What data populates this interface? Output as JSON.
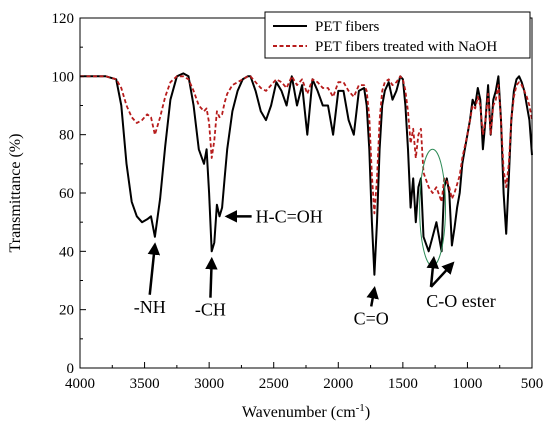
{
  "chart_data": {
    "type": "line",
    "xlabel": "Wavenumber (cm",
    "xlabel_sup": "-1",
    "xlabel_tail": ")",
    "ylabel": "Transmittance (%)",
    "xlim": [
      4000,
      500
    ],
    "ylim": [
      0,
      120
    ],
    "x_ticks": [
      4000,
      3500,
      3000,
      2500,
      2000,
      1500,
      1000,
      500
    ],
    "y_ticks": [
      0,
      20,
      40,
      60,
      80,
      100,
      120
    ],
    "grid": false,
    "legend_position": "top-right",
    "series": [
      {
        "name": "PET fibers",
        "color": "#000000",
        "style": "solid",
        "x": [
          4000,
          3800,
          3720,
          3680,
          3640,
          3600,
          3560,
          3520,
          3480,
          3450,
          3420,
          3380,
          3340,
          3300,
          3250,
          3200,
          3160,
          3120,
          3080,
          3040,
          3020,
          3000,
          2980,
          2960,
          2940,
          2920,
          2900,
          2880,
          2860,
          2820,
          2780,
          2740,
          2700,
          2680,
          2640,
          2600,
          2560,
          2520,
          2480,
          2440,
          2400,
          2360,
          2320,
          2280,
          2240,
          2200,
          2160,
          2120,
          2080,
          2040,
          2000,
          1960,
          1920,
          1880,
          1840,
          1800,
          1780,
          1760,
          1740,
          1720,
          1700,
          1680,
          1660,
          1640,
          1610,
          1580,
          1550,
          1520,
          1500,
          1480,
          1460,
          1440,
          1420,
          1400,
          1380,
          1360,
          1340,
          1300,
          1270,
          1240,
          1200,
          1180,
          1160,
          1140,
          1120,
          1100,
          1080,
          1060,
          1040,
          1020,
          1000,
          980,
          960,
          940,
          920,
          900,
          880,
          860,
          840,
          820,
          800,
          780,
          760,
          740,
          720,
          700,
          680,
          660,
          640,
          620,
          600,
          580,
          560,
          540,
          520,
          500
        ],
        "y": [
          100,
          100,
          99,
          90,
          70,
          57,
          52,
          50,
          51,
          52,
          45,
          58,
          76,
          92,
          100,
          101,
          100,
          90,
          75,
          70,
          75,
          60,
          40,
          43,
          56,
          52,
          55,
          65,
          75,
          88,
          95,
          99,
          100,
          100,
          95,
          88,
          85,
          90,
          98,
          95,
          90,
          100,
          90,
          97,
          80,
          99,
          95,
          90,
          90,
          80,
          95,
          95,
          85,
          80,
          95,
          96,
          90,
          75,
          50,
          32,
          50,
          75,
          90,
          95,
          98,
          92,
          95,
          100,
          99,
          90,
          75,
          55,
          65,
          50,
          62,
          65,
          45,
          40,
          45,
          50,
          40,
          62,
          65,
          60,
          42,
          48,
          55,
          60,
          70,
          75,
          80,
          85,
          92,
          90,
          96,
          92,
          75,
          85,
          97,
          80,
          92,
          95,
          100,
          85,
          60,
          46,
          65,
          85,
          95,
          99,
          100,
          98,
          95,
          90,
          85,
          73
        ]
      },
      {
        "name": "PET fibers treated with NaOH",
        "color": "#b71c1c",
        "style": "dashed",
        "x": [
          4000,
          3800,
          3720,
          3680,
          3640,
          3600,
          3560,
          3520,
          3480,
          3450,
          3420,
          3380,
          3340,
          3300,
          3250,
          3200,
          3160,
          3120,
          3080,
          3040,
          3020,
          3000,
          2980,
          2960,
          2940,
          2920,
          2900,
          2880,
          2860,
          2820,
          2780,
          2740,
          2700,
          2680,
          2640,
          2600,
          2560,
          2520,
          2480,
          2440,
          2400,
          2360,
          2320,
          2280,
          2240,
          2200,
          2160,
          2120,
          2080,
          2040,
          2000,
          1960,
          1920,
          1880,
          1840,
          1800,
          1780,
          1760,
          1740,
          1720,
          1700,
          1680,
          1660,
          1640,
          1610,
          1580,
          1550,
          1520,
          1500,
          1480,
          1460,
          1440,
          1420,
          1400,
          1380,
          1360,
          1340,
          1300,
          1270,
          1240,
          1200,
          1180,
          1160,
          1140,
          1120,
          1100,
          1080,
          1060,
          1040,
          1020,
          1000,
          980,
          960,
          940,
          920,
          900,
          880,
          860,
          840,
          820,
          800,
          780,
          760,
          740,
          720,
          700,
          680,
          660,
          640,
          620,
          600,
          580,
          560,
          540,
          520,
          500
        ],
        "y": [
          100,
          100,
          99,
          96,
          90,
          86,
          84,
          85,
          87,
          86,
          80,
          86,
          93,
          98,
          100,
          100,
          99,
          95,
          90,
          88,
          89,
          84,
          72,
          78,
          88,
          86,
          87,
          91,
          94,
          97,
          98,
          99,
          100,
          100,
          98,
          96,
          95,
          97,
          99,
          98,
          96,
          100,
          97,
          99,
          94,
          99,
          98,
          96,
          96,
          93,
          98,
          98,
          95,
          93,
          97,
          97,
          95,
          86,
          66,
          53,
          65,
          85,
          95,
          98,
          99,
          97,
          98,
          100,
          99,
          95,
          88,
          77,
          82,
          72,
          80,
          82,
          67,
          62,
          60,
          62,
          57,
          65,
          64,
          62,
          58,
          60,
          63,
          66,
          72,
          76,
          80,
          85,
          90,
          89,
          93,
          90,
          80,
          85,
          94,
          80,
          90,
          92,
          97,
          85,
          68,
          62,
          70,
          85,
          93,
          97,
          98,
          97,
          95,
          93,
          90,
          85
        ]
      }
    ],
    "annotations": [
      {
        "text": "-NH",
        "x": 3420,
        "y": 45,
        "label_x": 3460,
        "label_y": 21
      },
      {
        "text": "-CH",
        "x": 2980,
        "y": 40,
        "label_x": 2990,
        "label_y": 20
      },
      {
        "text": "H-C=OH",
        "x": 2900,
        "y": 52,
        "label_x": 2640,
        "label_y": 52
      },
      {
        "text": "C=O",
        "x": 1720,
        "y": 30,
        "label_x": 1745,
        "label_y": 17
      },
      {
        "text": "C-O ester",
        "x": 1160,
        "y": 40,
        "label_x": 1050,
        "label_y": 23
      }
    ],
    "highlight_ellipse": {
      "center_x": 1270,
      "center_y": 55,
      "span_x": 100,
      "span_y": 20,
      "color": "#2e8b57"
    }
  }
}
